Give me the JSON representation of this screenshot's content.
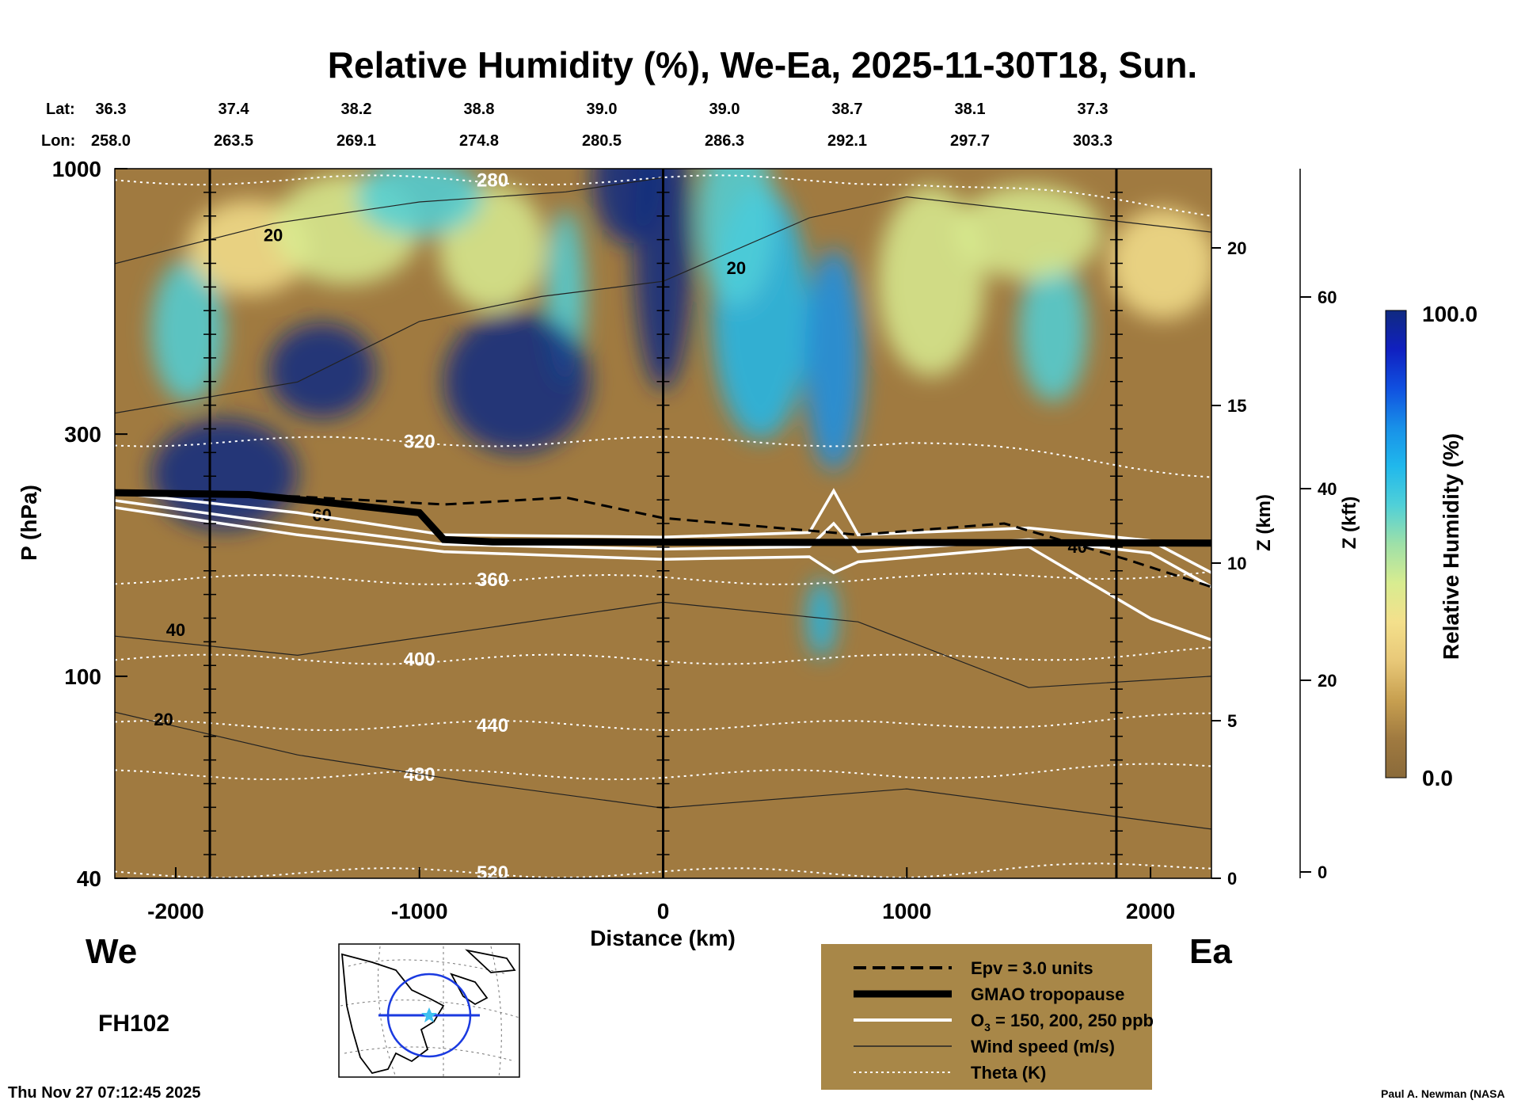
{
  "chart_data": {
    "type": "heatmap",
    "title": "Relative Humidity (%), We-Ea, 2025-11-30T18, Sun.",
    "xlabel": "Distance (km)",
    "ylabel": "P (hPa)",
    "y2label": "Z (km)",
    "y3label": "Z (kft)",
    "xlim": [
      -2250,
      2250
    ],
    "ylim": [
      1000,
      40
    ],
    "yscale": "log",
    "x_ticks": [
      -2000,
      -1000,
      0,
      1000,
      2000
    ],
    "y_ticks": [
      {
        "value": 40,
        "label": "40"
      },
      {
        "value": 100,
        "label": "100"
      },
      {
        "value": 300,
        "label": "300"
      },
      {
        "value": 1000,
        "label": "1000"
      }
    ],
    "z_km_ticks": [
      "0",
      "5",
      "10",
      "15",
      "20"
    ],
    "z_kft_ticks": [
      "0",
      "20",
      "40",
      "60"
    ],
    "lat_label": "Lat:",
    "lon_label": "Lon:",
    "lat_values": [
      "36.3",
      "37.4",
      "38.2",
      "38.8",
      "39.0",
      "39.0",
      "38.7",
      "38.1",
      "37.3"
    ],
    "lon_values": [
      "258.0",
      "263.5",
      "269.1",
      "274.8",
      "280.5",
      "286.3",
      "292.1",
      "297.7",
      "303.3"
    ],
    "direction_left": "We",
    "direction_right": "Ea",
    "forecast_hour": "FH102",
    "timestamp": "Thu Nov 27 07:12:45 2025",
    "credit": "Paul A. Newman (NASA",
    "colorbar": {
      "title": "Relative Humidity (%)",
      "min": 0.0,
      "max": 100.0,
      "min_label": "0.0",
      "max_label": "100.0",
      "colors": [
        "#8a6a3a",
        "#a07a40",
        "#c8a050",
        "#e8c878",
        "#f4e08c",
        "#d8ec90",
        "#9ee0a8",
        "#50d0d8",
        "#20b8ec",
        "#1890e8",
        "#1050e0",
        "#1020c0",
        "#102a80"
      ]
    },
    "legend": {
      "items": [
        {
          "style": "dashed",
          "label": "Epv = 3.0 units"
        },
        {
          "style": "thick-black",
          "label": "GMAO tropopause"
        },
        {
          "style": "white",
          "label": "O",
          "sub": "3",
          "label_after": " = 150, 200, 250 ppb"
        },
        {
          "style": "thin-black",
          "label": "Wind speed (m/s)"
        },
        {
          "style": "dotted-white",
          "label": "Theta (K)"
        }
      ]
    },
    "theta_contours": [
      {
        "label": "280",
        "pressure": 950
      },
      {
        "label": "320",
        "pressure": 290
      },
      {
        "label": "360",
        "pressure": 155
      },
      {
        "label": "400",
        "pressure": 108
      },
      {
        "label": "440",
        "pressure": 80
      },
      {
        "label": "480",
        "pressure": 64
      },
      {
        "label": "520",
        "pressure": 41
      }
    ],
    "wind_labels": [
      "20",
      "40",
      "60"
    ],
    "tropopause_pressure_west": 230,
    "tropopause_pressure_east": 183
  }
}
